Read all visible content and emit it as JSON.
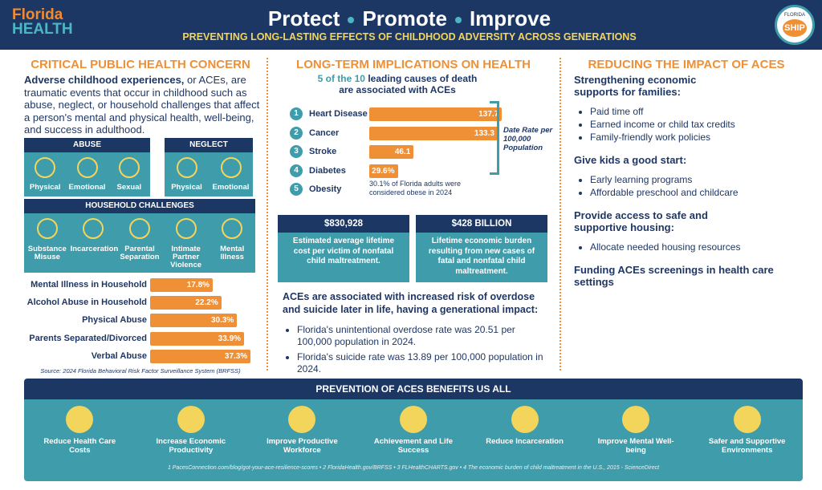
{
  "header": {
    "logo_top": "Florida",
    "logo_bottom": "HEALTH",
    "title_parts": [
      "Protect",
      "Promote",
      "Improve"
    ],
    "subtitle": "PREVENTING LONG-LASTING EFFECTS OF CHILDHOOD ADVERSITY ACROSS GENERATIONS",
    "badge_top": "FLORIDA",
    "badge": "SHIP"
  },
  "left": {
    "heading": "CRITICAL PUBLIC HEALTH CONCERN",
    "intro_bold": "Adverse childhood experiences,",
    "intro": " or ACEs, are traumatic events that occur in childhood such as abuse, neglect, or household challenges that affect a person's mental and physical health, well-being, and success in adulthood.",
    "groups": [
      {
        "title": "ABUSE",
        "items": [
          "Physical",
          "Emotional",
          "Sexual"
        ]
      },
      {
        "title": "NEGLECT",
        "items": [
          "Physical",
          "Emotional"
        ]
      },
      {
        "title": "HOUSEHOLD CHALLENGES",
        "items": [
          "Substance Misuse",
          "Incarceration",
          "Parental Separation",
          "Intimate Partner Violence",
          "Mental Illness"
        ]
      }
    ],
    "prevalence": {
      "categories": [
        "Mental Illness in Household",
        "Alcohol Abuse in Household",
        "Physical Abuse",
        "Parents Separated/Divorced",
        "Verbal Abuse"
      ],
      "values": [
        17.8,
        22.2,
        30.3,
        33.9,
        37.3
      ],
      "value_labels": [
        "17.8%",
        "22.2%",
        "30.3%",
        "33.9%",
        "37.3%"
      ]
    },
    "source": "Source: 2024 Florida Behavioral Risk Factor Surveillance System (BRFSS)"
  },
  "middle": {
    "heading": "LONG-TERM IMPLICATIONS ON HEALTH",
    "sub_highlight": "5 of the 10",
    "sub": " leading causes of death are associated with ACEs",
    "causes": [
      {
        "rank": 1,
        "name": "Heart Disease",
        "value": 137.7
      },
      {
        "rank": 2,
        "name": "Cancer",
        "value": 133.3
      },
      {
        "rank": 3,
        "name": "Stroke",
        "value": 46.1
      },
      {
        "rank": 4,
        "name": "Diabetes",
        "value": 29.6,
        "value_label": "29.6%"
      },
      {
        "rank": 5,
        "name": "Obesity",
        "note": "30.1% of Florida adults were considered obese in 2024"
      }
    ],
    "bracket_label": "Date Rate per 100,000 Population",
    "stats": [
      {
        "value": "$830,928",
        "text": "Estimated average lifetime cost per victim of nonfatal child maltreatment."
      },
      {
        "value": "$428 BILLION",
        "text": "Lifetime economic burden resulting from new cases of fatal and nonfatal child maltreatment."
      }
    ],
    "risk_text": "ACEs are associated with increased risk of overdose and suicide later in life, having a generational impact:",
    "bullets": [
      "Florida's unintentional overdose rate was 20.51 per 100,000 population in 2024.",
      "Florida's suicide rate was 13.89 per 100,000 population in 2024."
    ]
  },
  "right": {
    "heading": "REDUCING THE IMPACT OF ACES",
    "sections": [
      {
        "title": "Strengthening economic supports for families:",
        "bullets": [
          "Paid time off",
          "Earned income or child tax credits",
          "Family-friendly work policies"
        ]
      },
      {
        "title": "Give kids a good start:",
        "bullets": [
          "Early learning programs",
          "Affordable preschool and childcare"
        ]
      },
      {
        "title": "Provide access to safe and supportive housing:",
        "bullets": [
          "Allocate needed housing resources"
        ]
      },
      {
        "title": "Funding ACEs screenings in health care settings",
        "bullets": []
      }
    ]
  },
  "bottom": {
    "title": "PREVENTION OF ACES BENEFITS US ALL",
    "benefits": [
      "Reduce Health Care Costs",
      "Increase Economic Productivity",
      "Improve Productive Workforce",
      "Achievement and Life Success",
      "Reduce Incarceration",
      "Improve Mental Well-being",
      "Safer and Supportive Environments"
    ],
    "footnote": "1 PacesConnection.com/blog/got-your-ace-resilience-scores  •  2 FloridaHealth.gov/BRFSS  •  3 FLHealthCHARTS.gov  •  4 The economic burden of child maltreatment in the U.S., 2015 - ScienceDirect"
  }
}
